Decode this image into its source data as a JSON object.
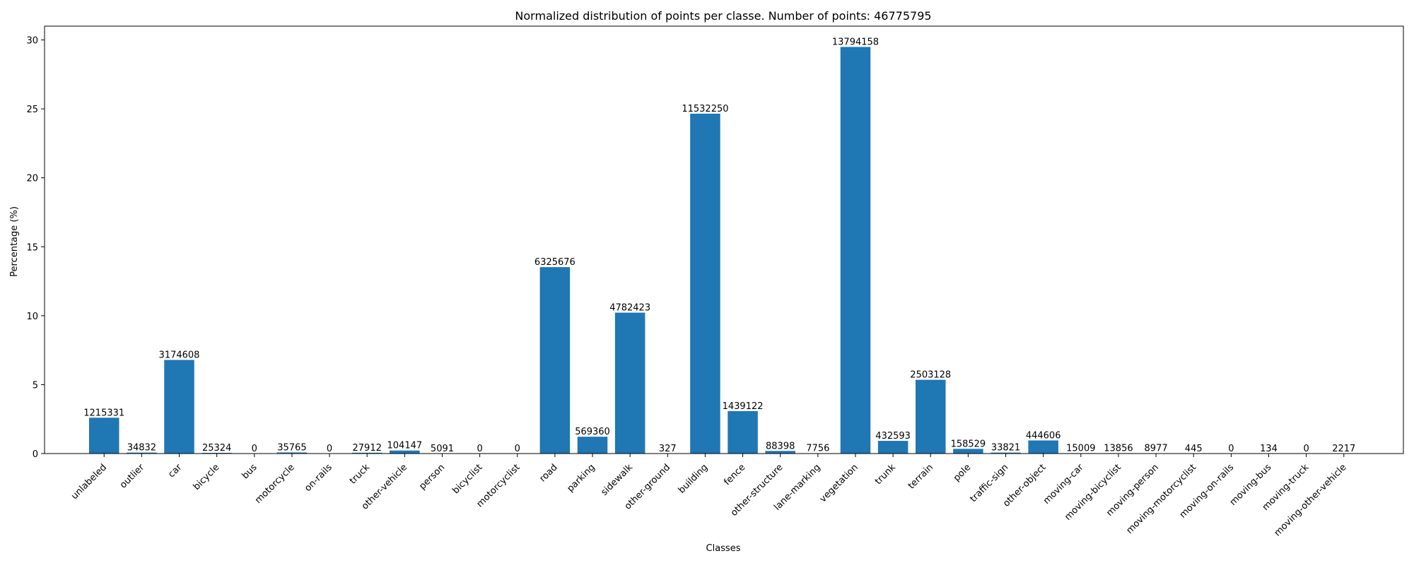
{
  "chart_data": {
    "type": "bar",
    "title": "Normalized distribution of points per classe. Number of points: 46775795",
    "xlabel": "Classes",
    "ylabel": "Percentage (%)",
    "ylim": [
      0,
      31
    ],
    "yticks": [
      0,
      5,
      10,
      15,
      20,
      25,
      30
    ],
    "grid": false,
    "bar_color": "#1f77b4",
    "categories": [
      "unlabeled",
      "outlier",
      "car",
      "bicycle",
      "bus",
      "motorcycle",
      "on-rails",
      "truck",
      "other-vehicle",
      "person",
      "bicyclist",
      "motorcyclist",
      "road",
      "parking",
      "sidewalk",
      "other-ground",
      "building",
      "fence",
      "other-structure",
      "lane-marking",
      "vegetation",
      "trunk",
      "terrain",
      "pole",
      "traffic-sign",
      "other-object",
      "moving-car",
      "moving-bicyclist",
      "moving-person",
      "moving-motorcyclist",
      "moving-on-rails",
      "moving-bus",
      "moving-truck",
      "moving-other-vehicle"
    ],
    "values": [
      2.6,
      0.07,
      6.79,
      0.05,
      0.0,
      0.08,
      0.0,
      0.06,
      0.22,
      0.01,
      0.0,
      0.0,
      13.52,
      1.22,
      10.22,
      0.0,
      24.65,
      3.08,
      0.19,
      0.02,
      29.49,
      0.92,
      5.35,
      0.34,
      0.07,
      0.95,
      0.03,
      0.03,
      0.02,
      0.0,
      0.0,
      0.0,
      0.0,
      0.0
    ],
    "data_labels": [
      "1215331",
      "34832",
      "3174608",
      "25324",
      "0",
      "35765",
      "0",
      "27912",
      "104147",
      "5091",
      "0",
      "0",
      "6325676",
      "569360",
      "4782423",
      "327",
      "11532250",
      "1439122",
      "88398",
      "7756",
      "13794158",
      "432593",
      "2503128",
      "158529",
      "33821",
      "444606",
      "15009",
      "13856",
      "8977",
      "445",
      "0",
      "134",
      "0",
      "2217"
    ]
  }
}
